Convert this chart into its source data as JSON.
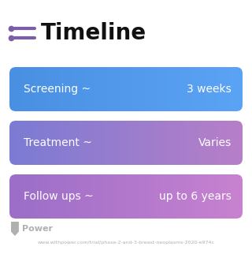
{
  "title": "Timeline",
  "background_color": "#ffffff",
  "title_fontsize": 20,
  "title_fontweight": "bold",
  "title_color": "#111111",
  "icon_color": "#7b5ea7",
  "rows": [
    {
      "left_text": "Screening ~",
      "right_text": "3 weeks",
      "color_left": "#4a90e2",
      "color_right": "#5ba3f5"
    },
    {
      "left_text": "Treatment ~",
      "right_text": "Varies",
      "color_left": "#7b7bd4",
      "color_right": "#b87fc8"
    },
    {
      "left_text": "Follow ups ~",
      "right_text": "up to 6 years",
      "color_left": "#9b6ec8",
      "color_right": "#c882d0"
    }
  ],
  "footer_logo_text": "Power",
  "footer_url": "www.withpower.com/trial/phase-2-and-3-breast-neoplasms-2020-e974c",
  "footer_color": "#b0b0b0"
}
